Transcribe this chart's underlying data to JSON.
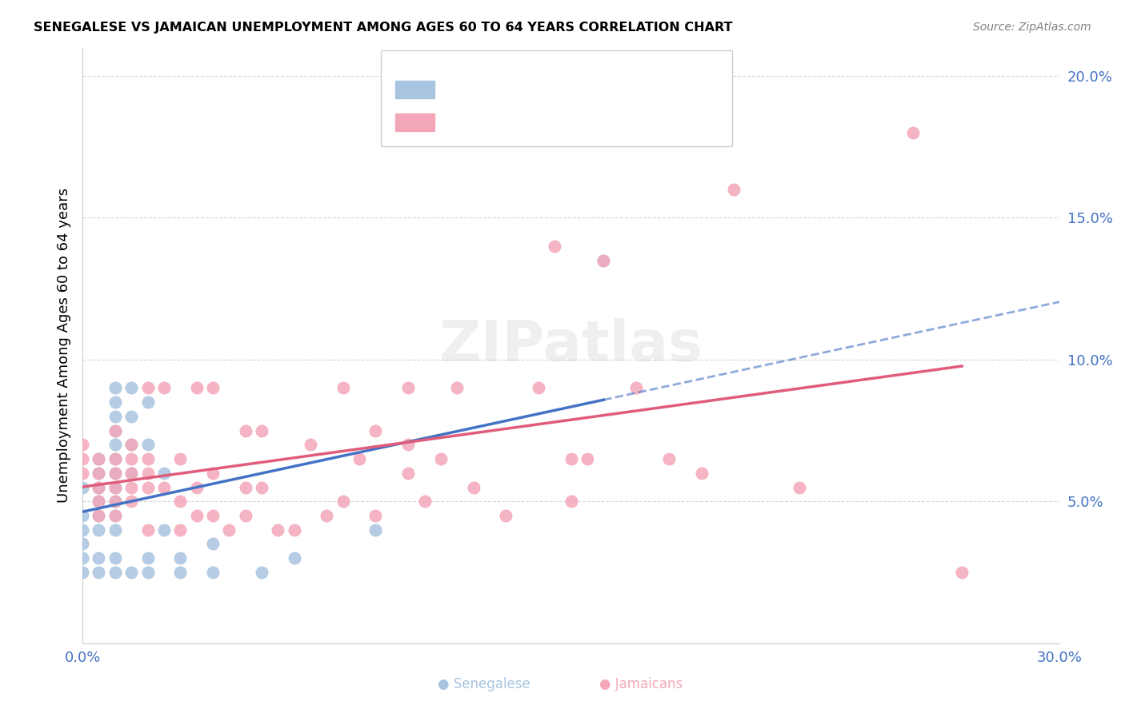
{
  "title": "SENEGALESE VS JAMAICAN UNEMPLOYMENT AMONG AGES 60 TO 64 YEARS CORRELATION CHART",
  "source": "Source: ZipAtlas.com",
  "xlabel": "",
  "ylabel": "Unemployment Among Ages 60 to 64 years",
  "xlim": [
    0.0,
    0.3
  ],
  "ylim": [
    0.0,
    0.21
  ],
  "xticks": [
    0.0,
    0.05,
    0.1,
    0.15,
    0.2,
    0.25,
    0.3
  ],
  "xticklabels": [
    "0.0%",
    "",
    "",
    "",
    "",
    "",
    "30.0%"
  ],
  "yticks": [
    0.0,
    0.05,
    0.1,
    0.15,
    0.2
  ],
  "yticklabels": [
    "",
    "5.0%",
    "10.0%",
    "15.0%",
    "20.0%"
  ],
  "senegalese_color": "#a8c4e0",
  "jamaican_color": "#f4a7b9",
  "senegalese_line_color": "#4472c4",
  "jamaican_line_color": "#e05c7a",
  "watermark": "ZIPatlas",
  "senegalese_x": [
    0.0,
    0.0,
    0.0,
    0.0,
    0.0,
    0.0,
    0.005,
    0.005,
    0.005,
    0.005,
    0.005,
    0.005,
    0.005,
    0.005,
    0.01,
    0.01,
    0.01,
    0.01,
    0.01,
    0.01,
    0.01,
    0.01,
    0.01,
    0.01,
    0.01,
    0.01,
    0.01,
    0.015,
    0.015,
    0.015,
    0.015,
    0.015,
    0.02,
    0.02,
    0.02,
    0.02,
    0.025,
    0.025,
    0.03,
    0.03,
    0.04,
    0.04,
    0.055,
    0.065,
    0.09,
    0.16
  ],
  "senegalese_y": [
    0.025,
    0.03,
    0.035,
    0.04,
    0.045,
    0.055,
    0.025,
    0.03,
    0.04,
    0.045,
    0.05,
    0.055,
    0.06,
    0.065,
    0.025,
    0.03,
    0.04,
    0.045,
    0.05,
    0.055,
    0.06,
    0.065,
    0.07,
    0.075,
    0.08,
    0.085,
    0.09,
    0.025,
    0.06,
    0.07,
    0.08,
    0.09,
    0.025,
    0.03,
    0.07,
    0.085,
    0.04,
    0.06,
    0.025,
    0.03,
    0.025,
    0.035,
    0.025,
    0.03,
    0.04,
    0.135
  ],
  "jamaican_x": [
    0.0,
    0.0,
    0.0,
    0.005,
    0.005,
    0.005,
    0.005,
    0.005,
    0.01,
    0.01,
    0.01,
    0.01,
    0.01,
    0.01,
    0.015,
    0.015,
    0.015,
    0.015,
    0.015,
    0.02,
    0.02,
    0.02,
    0.02,
    0.02,
    0.025,
    0.025,
    0.03,
    0.03,
    0.03,
    0.035,
    0.035,
    0.035,
    0.04,
    0.04,
    0.04,
    0.045,
    0.05,
    0.05,
    0.05,
    0.055,
    0.055,
    0.06,
    0.065,
    0.07,
    0.075,
    0.08,
    0.08,
    0.085,
    0.09,
    0.09,
    0.1,
    0.1,
    0.1,
    0.105,
    0.11,
    0.115,
    0.12,
    0.13,
    0.14,
    0.145,
    0.15,
    0.15,
    0.155,
    0.16,
    0.17,
    0.18,
    0.19,
    0.2,
    0.22,
    0.255,
    0.27
  ],
  "jamaican_y": [
    0.06,
    0.065,
    0.07,
    0.045,
    0.05,
    0.055,
    0.06,
    0.065,
    0.045,
    0.05,
    0.055,
    0.06,
    0.065,
    0.075,
    0.05,
    0.055,
    0.06,
    0.065,
    0.07,
    0.04,
    0.055,
    0.06,
    0.065,
    0.09,
    0.055,
    0.09,
    0.04,
    0.05,
    0.065,
    0.045,
    0.055,
    0.09,
    0.045,
    0.06,
    0.09,
    0.04,
    0.045,
    0.055,
    0.075,
    0.055,
    0.075,
    0.04,
    0.04,
    0.07,
    0.045,
    0.05,
    0.09,
    0.065,
    0.045,
    0.075,
    0.06,
    0.07,
    0.09,
    0.05,
    0.065,
    0.09,
    0.055,
    0.045,
    0.09,
    0.14,
    0.05,
    0.065,
    0.065,
    0.135,
    0.09,
    0.065,
    0.06,
    0.16,
    0.055,
    0.18,
    0.025
  ]
}
